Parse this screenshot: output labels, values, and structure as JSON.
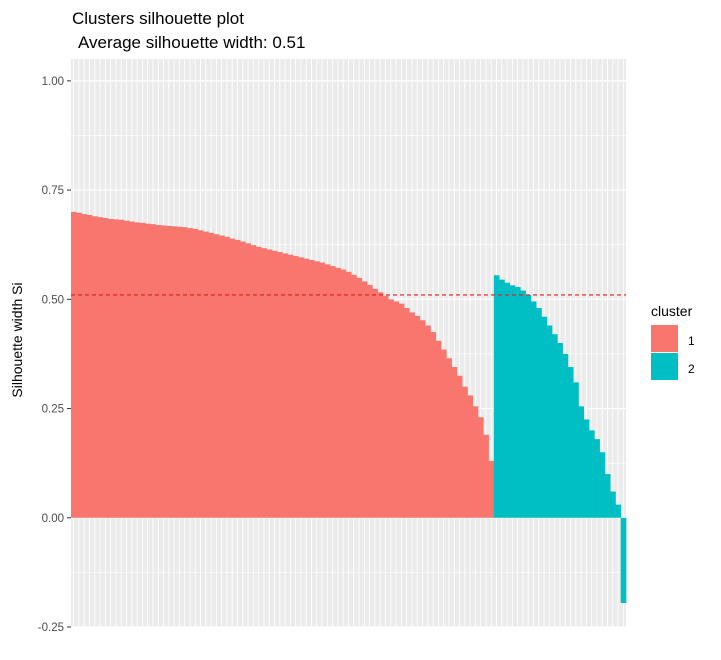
{
  "chart_data": {
    "type": "bar",
    "title": "Clusters silhouette plot",
    "subtitle": "Average silhouette width: 0.51",
    "xlabel": "",
    "ylabel": "Silhouette width Si",
    "ylim": [
      -0.25,
      1.05
    ],
    "y_ticks": [
      -0.25,
      0.0,
      0.25,
      0.5,
      0.75,
      1.0
    ],
    "y_tick_labels": [
      "-0.25",
      "0.00",
      "0.25",
      "0.50",
      "0.75",
      "1.00"
    ],
    "average_line": 0.51,
    "grid": true,
    "legend": {
      "title": "cluster",
      "position": "right"
    },
    "series": [
      {
        "name": "1",
        "color": "#F8766D",
        "values": [
          0.7,
          0.698,
          0.695,
          0.693,
          0.69,
          0.688,
          0.686,
          0.684,
          0.683,
          0.682,
          0.68,
          0.678,
          0.676,
          0.675,
          0.673,
          0.672,
          0.67,
          0.669,
          0.668,
          0.667,
          0.666,
          0.665,
          0.663,
          0.661,
          0.658,
          0.655,
          0.652,
          0.649,
          0.646,
          0.643,
          0.639,
          0.636,
          0.632,
          0.628,
          0.624,
          0.62,
          0.617,
          0.614,
          0.611,
          0.608,
          0.605,
          0.602,
          0.599,
          0.596,
          0.593,
          0.59,
          0.587,
          0.584,
          0.58,
          0.576,
          0.572,
          0.568,
          0.563,
          0.556,
          0.549,
          0.541,
          0.533,
          0.524,
          0.516,
          0.508,
          0.5,
          0.495,
          0.49,
          0.48,
          0.47,
          0.462,
          0.452,
          0.44,
          0.425,
          0.405,
          0.385,
          0.365,
          0.345,
          0.325,
          0.3,
          0.28,
          0.255,
          0.23,
          0.19,
          0.13
        ]
      },
      {
        "name": "2",
        "color": "#00BFC4",
        "values": [
          0.555,
          0.545,
          0.538,
          0.532,
          0.528,
          0.52,
          0.51,
          0.495,
          0.48,
          0.46,
          0.44,
          0.42,
          0.4,
          0.375,
          0.345,
          0.31,
          0.255,
          0.225,
          0.2,
          0.18,
          0.15,
          0.1,
          0.06,
          0.03,
          -0.195
        ]
      }
    ]
  }
}
